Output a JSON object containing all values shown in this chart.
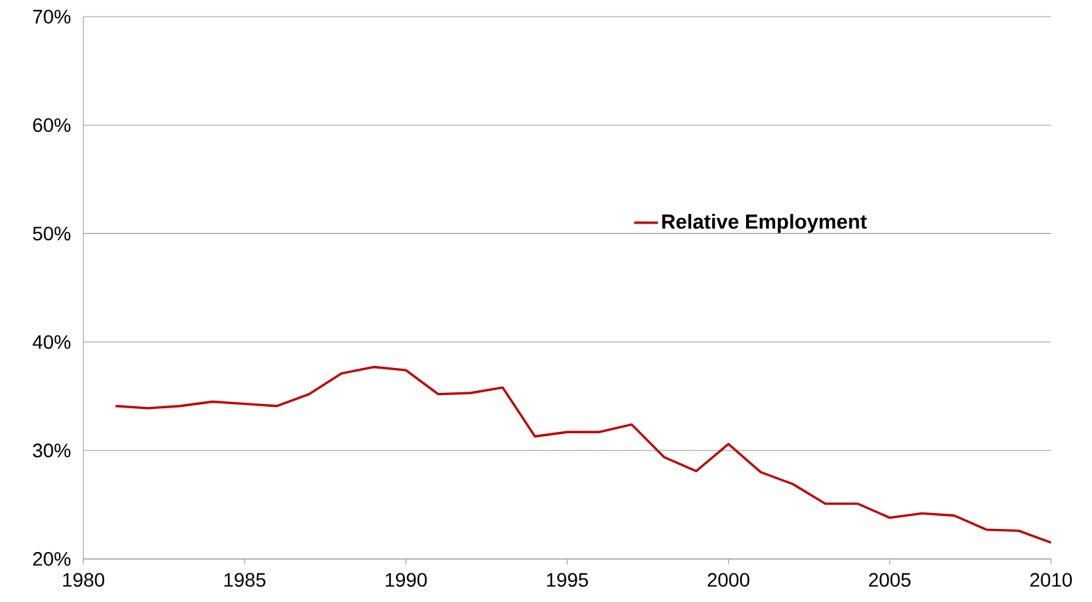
{
  "chart_data": {
    "type": "line",
    "x": [
      1981,
      1982,
      1983,
      1984,
      1985,
      1986,
      1987,
      1988,
      1989,
      1990,
      1991,
      1992,
      1993,
      1994,
      1995,
      1996,
      1997,
      1998,
      1999,
      2000,
      2001,
      2002,
      2003,
      2004,
      2005,
      2006,
      2007,
      2008,
      2009,
      2010
    ],
    "series": [
      {
        "name": "Relative Employment",
        "color": "#c00000",
        "values": [
          34.1,
          33.9,
          34.1,
          34.5,
          34.3,
          34.1,
          35.2,
          37.1,
          37.7,
          37.4,
          35.2,
          35.3,
          35.8,
          31.3,
          31.7,
          31.7,
          32.4,
          29.4,
          28.1,
          30.6,
          28.0,
          26.9,
          25.1,
          25.1,
          23.8,
          24.2,
          24.0,
          22.7,
          22.6,
          21.5
        ]
      }
    ],
    "xlim": [
      1980,
      2010
    ],
    "xticks": [
      1980,
      1985,
      1990,
      1995,
      2000,
      2005,
      2010
    ],
    "ylim": [
      20,
      70
    ],
    "yticks": [
      {
        "value": 20,
        "label": "20%"
      },
      {
        "value": 30,
        "label": "30%"
      },
      {
        "value": 40,
        "label": "40%"
      },
      {
        "value": 50,
        "label": "50%"
      },
      {
        "value": 60,
        "label": "60%"
      },
      {
        "value": 70,
        "label": "70%"
      }
    ],
    "grid": "y",
    "legend": "right",
    "marker": "none",
    "line_style": "solid"
  }
}
